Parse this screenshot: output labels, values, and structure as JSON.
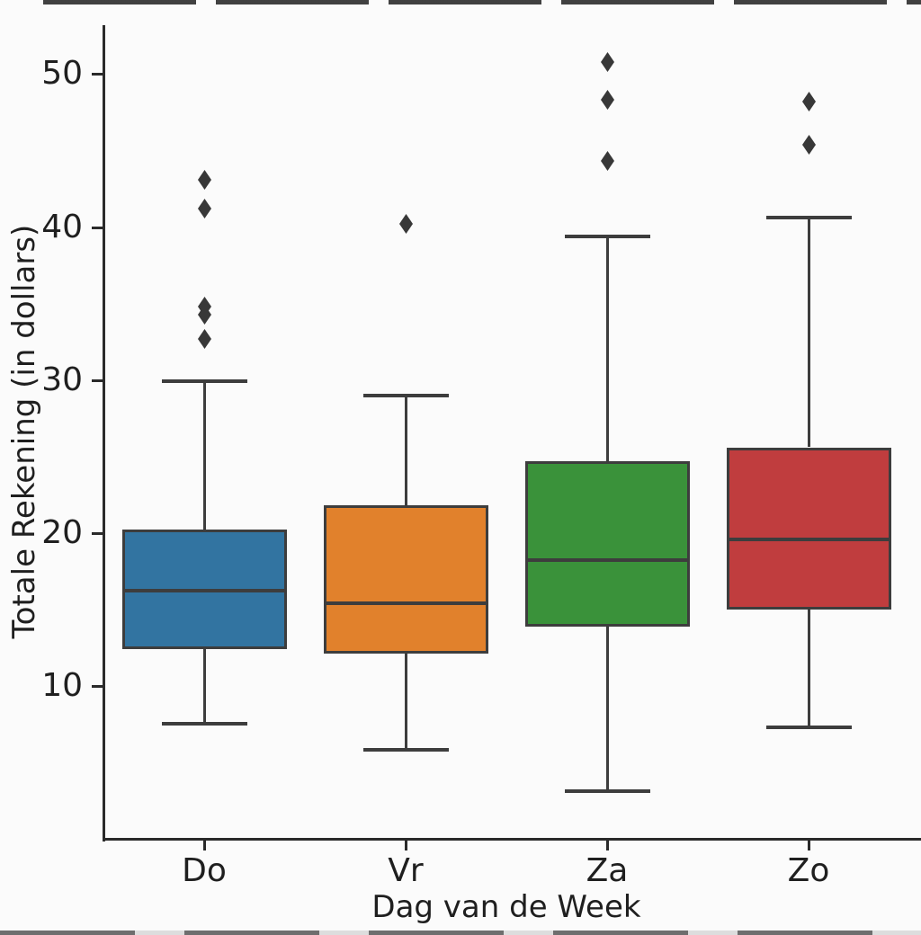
{
  "figure": {
    "background": "#fbfbfb",
    "axis_color": "#2a2a2a",
    "line_color": "#3d3d3d",
    "text_color": "#1f1f1f"
  },
  "chart_data": {
    "type": "boxplot",
    "title": "",
    "xlabel": "Dag van de Week",
    "ylabel": "Totale Rekening (in dollars)",
    "categories": [
      "Do",
      "Vr",
      "Za",
      "Zo"
    ],
    "y_ticks": [
      10,
      20,
      30,
      40,
      50
    ],
    "ylim": [
      0,
      53.2
    ],
    "grid": false,
    "legend": null,
    "series": [
      {
        "category": "Do",
        "color": "#3274a1",
        "whisker_low": 7.5,
        "q1": 12.4,
        "median": 16.2,
        "q3": 20.2,
        "whisker_high": 29.9,
        "outliers": [
          32.7,
          34.3,
          34.8,
          41.2,
          43.1
        ]
      },
      {
        "category": "Vr",
        "color": "#e1812c",
        "whisker_low": 5.8,
        "q1": 12.1,
        "median": 15.4,
        "q3": 21.8,
        "whisker_high": 29.0,
        "outliers": [
          40.2
        ]
      },
      {
        "category": "Za",
        "color": "#3a923a",
        "whisker_low": 3.1,
        "q1": 13.9,
        "median": 18.2,
        "q3": 24.7,
        "whisker_high": 39.4,
        "outliers": [
          44.3,
          48.3,
          50.8
        ]
      },
      {
        "category": "Zo",
        "color": "#c03d3e",
        "whisker_low": 7.3,
        "q1": 15.0,
        "median": 19.6,
        "q3": 25.6,
        "whisker_high": 40.6,
        "outliers": [
          45.4,
          48.2
        ]
      }
    ]
  }
}
